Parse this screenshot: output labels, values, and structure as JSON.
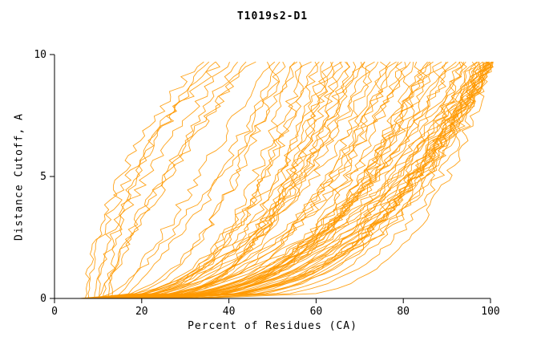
{
  "chart_data": {
    "type": "line",
    "title": "T1019s2-D1",
    "xlabel": "Percent of Residues (CA)",
    "ylabel": "Distance Cutoff, A",
    "xlim": [
      0,
      100
    ],
    "ylim": [
      0,
      10
    ],
    "xticks": [
      "0",
      "20",
      "40",
      "60",
      "80",
      "100"
    ],
    "xtick_values": [
      0,
      20,
      40,
      60,
      80,
      100
    ],
    "yticks": [
      "0",
      "5",
      "10"
    ],
    "ytick_values": [
      0,
      5,
      10
    ],
    "grid": false,
    "legend": false,
    "line_color": "#FF9900",
    "axis_color": "#000000",
    "y_max_drawn": 9.7,
    "curves_format": [
      "x_at_bottom",
      "x_at_top",
      "shape_exponent",
      "seed"
    ],
    "curves": [
      [
        8,
        33,
        0.55,
        1
      ],
      [
        10,
        36,
        0.6,
        2
      ],
      [
        9,
        40,
        0.7,
        3
      ],
      [
        12,
        42,
        0.8,
        4
      ],
      [
        11,
        45,
        0.75,
        5
      ],
      [
        7,
        38,
        0.6,
        6
      ],
      [
        13,
        35,
        0.5,
        7
      ],
      [
        10,
        44,
        0.9,
        8
      ],
      [
        6,
        50,
        3.0,
        9
      ],
      [
        8,
        52,
        2.5,
        10
      ],
      [
        10,
        55,
        3.0,
        11
      ],
      [
        12,
        58,
        2.8,
        12
      ],
      [
        9,
        60,
        2.5,
        13
      ],
      [
        14,
        62,
        3.5,
        14
      ],
      [
        11,
        65,
        2.2,
        15
      ],
      [
        13,
        68,
        3.0,
        16
      ],
      [
        7,
        70,
        2.6,
        17
      ],
      [
        15,
        56,
        1.2,
        18
      ],
      [
        16,
        63,
        2.4,
        19
      ],
      [
        8,
        66,
        2.9,
        20
      ],
      [
        18,
        60,
        3.3,
        21
      ],
      [
        12,
        69,
        2.1,
        22
      ],
      [
        10,
        53,
        1.4,
        23
      ],
      [
        20,
        64,
        2.7,
        24
      ],
      [
        9,
        57,
        3.1,
        25
      ],
      [
        17,
        70,
        2.3,
        26
      ],
      [
        14,
        49,
        1.1,
        27
      ],
      [
        19,
        67,
        2.5,
        28
      ],
      [
        6,
        72,
        2.8,
        29
      ],
      [
        9,
        74,
        2.2,
        30
      ],
      [
        12,
        76,
        3.0,
        31
      ],
      [
        15,
        78,
        2.5,
        32
      ],
      [
        8,
        80,
        2.9,
        33
      ],
      [
        11,
        82,
        2.3,
        34
      ],
      [
        14,
        84,
        3.2,
        35
      ],
      [
        17,
        86,
        2.6,
        36
      ],
      [
        10,
        88,
        2.2,
        37
      ],
      [
        13,
        90,
        2.8,
        38
      ],
      [
        16,
        92,
        2.4,
        39
      ],
      [
        19,
        94,
        3.0,
        40
      ],
      [
        22,
        76,
        3.4,
        41
      ],
      [
        25,
        85,
        2.7,
        42
      ],
      [
        7,
        79,
        2.1,
        43
      ],
      [
        20,
        91,
        2.5,
        44
      ],
      [
        23,
        83,
        2.9,
        45
      ],
      [
        9,
        87,
        3.3,
        46
      ],
      [
        12,
        95,
        2.2,
        47
      ],
      [
        26,
        80,
        2.6,
        48
      ],
      [
        18,
        73,
        3.1,
        49
      ],
      [
        21,
        89,
        2.4,
        50
      ],
      [
        15,
        93,
        2.8,
        51
      ],
      [
        28,
        86,
        2.3,
        52
      ],
      [
        24,
        94,
        3.5,
        53
      ],
      [
        8,
        97,
        2.8,
        54
      ],
      [
        10,
        98,
        2.4,
        55
      ],
      [
        12,
        99,
        3.0,
        56
      ],
      [
        14,
        100,
        2.6,
        57
      ],
      [
        16,
        100,
        3.4,
        58
      ],
      [
        18,
        99,
        2.2,
        59
      ],
      [
        20,
        100,
        2.9,
        60
      ],
      [
        22,
        98,
        2.5,
        61
      ],
      [
        24,
        100,
        3.2,
        62
      ],
      [
        26,
        99,
        2.7,
        63
      ],
      [
        28,
        100,
        2.3,
        64
      ],
      [
        30,
        100,
        3.6,
        65
      ],
      [
        9,
        96,
        4.0,
        66
      ],
      [
        11,
        100,
        3.1,
        67
      ],
      [
        13,
        97,
        2.2,
        68
      ],
      [
        15,
        100,
        2.8,
        69
      ],
      [
        17,
        98,
        3.3,
        70
      ],
      [
        19,
        100,
        2.4,
        71
      ],
      [
        21,
        99,
        2.9,
        72
      ],
      [
        23,
        100,
        2.1,
        73
      ],
      [
        25,
        97,
        3.0,
        74
      ],
      [
        27,
        100,
        2.6,
        75
      ],
      [
        29,
        98,
        3.4,
        76
      ],
      [
        31,
        100,
        2.8,
        77
      ],
      [
        33,
        100,
        4.2,
        78
      ]
    ]
  }
}
